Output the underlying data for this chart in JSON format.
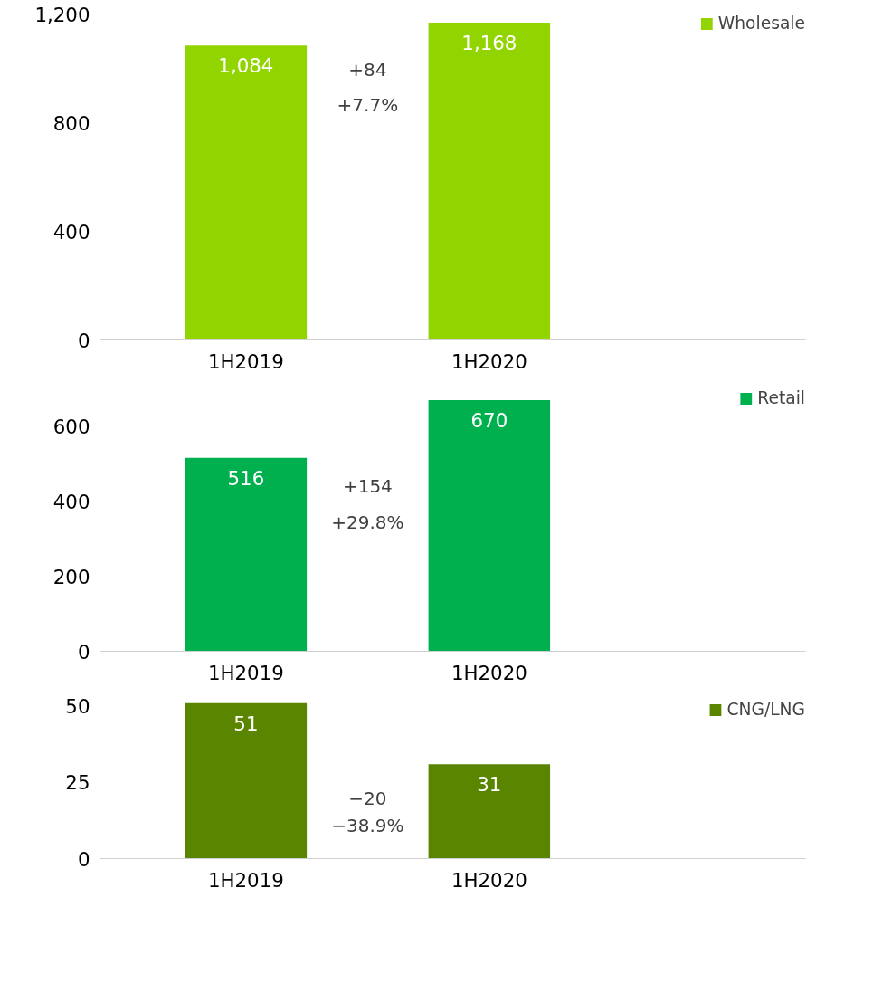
{
  "chart_data": [
    {
      "type": "bar",
      "categories": [
        "1H2019",
        "1H2020"
      ],
      "series": [
        {
          "name": "Wholesale",
          "color": "#92d400",
          "values": [
            1084,
            1168
          ]
        }
      ],
      "value_labels": [
        "1,084",
        "1,168"
      ],
      "ylim": [
        0,
        1200
      ],
      "yticks": [
        0,
        400,
        800,
        {
          "value": 1200,
          "label": "1,200"
        }
      ],
      "grid": false,
      "legend": "top right",
      "annotations": [
        "+84",
        "+7.7%"
      ]
    },
    {
      "type": "bar",
      "categories": [
        "1H2019",
        "1H2020"
      ],
      "series": [
        {
          "name": "Retail",
          "color": "#00b04f",
          "values": [
            516,
            670
          ]
        }
      ],
      "data_labels": true,
      "ylim": [
        0,
        700
      ],
      "yticks": [
        0,
        200,
        400,
        600
      ],
      "grid": false,
      "legend": "top right",
      "annotations": [
        "+154",
        "+29.8%"
      ]
    },
    {
      "type": "bar",
      "categories": [
        "1H2019",
        "1H2020"
      ],
      "series": [
        {
          "name": "CNG/LNG",
          "color": "#5a8500",
          "values": [
            51,
            31
          ]
        }
      ],
      "data_labels": true,
      "ylim": [
        0,
        52
      ],
      "yticks": [
        0,
        25,
        50
      ],
      "grid": false,
      "legend": "top right",
      "annotations": [
        "−20",
        "−38.9%"
      ]
    }
  ]
}
